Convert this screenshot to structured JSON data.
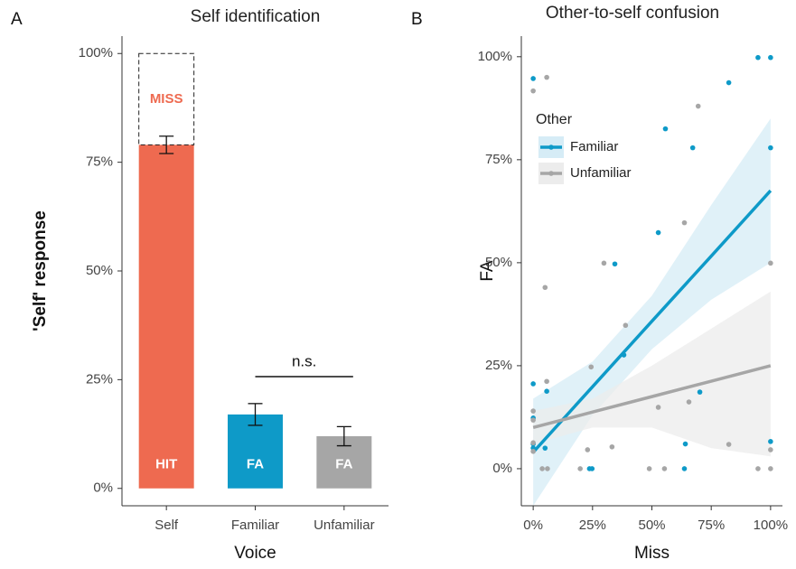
{
  "chart_data": [
    {
      "type": "bar",
      "panel_label": "A",
      "title": "Self identification",
      "ylabel": "'Self' response",
      "xlabel": "Voice",
      "categories": [
        "Self",
        "Familiar",
        "Unfamiliar"
      ],
      "values": [
        79,
        17,
        12
      ],
      "errors": [
        2,
        2.5,
        2.2
      ],
      "colors": [
        "#ee6a50",
        "#0e9ac8",
        "#a6a6a6"
      ],
      "bar_labels": [
        "HIT",
        "FA",
        "FA"
      ],
      "miss": {
        "label": "MISS",
        "value": 21
      },
      "significance": "n.s.",
      "ylim": [
        -4,
        104
      ],
      "yticks": [
        {
          "value": 0,
          "label": "0%"
        },
        {
          "value": 25,
          "label": "25%"
        },
        {
          "value": 50,
          "label": "50%"
        },
        {
          "value": 75,
          "label": "75%"
        },
        {
          "value": 100,
          "label": "100%"
        }
      ]
    },
    {
      "type": "scatter",
      "panel_label": "B",
      "title": "Other-to-self confusion",
      "ylabel": "FA",
      "xlabel": "Miss",
      "legend_title": "Other",
      "legend": "top-left",
      "xlim": [
        -5,
        105
      ],
      "ylim": [
        -9,
        105
      ],
      "xticks": [
        {
          "value": 0,
          "label": "0%"
        },
        {
          "value": 25,
          "label": "25%"
        },
        {
          "value": 50,
          "label": "50%"
        },
        {
          "value": 75,
          "label": "75%"
        },
        {
          "value": 100,
          "label": "100%"
        }
      ],
      "yticks": [
        {
          "value": 0,
          "label": "0%"
        },
        {
          "value": 25,
          "label": "25%"
        },
        {
          "value": 50,
          "label": "50%"
        },
        {
          "value": 75,
          "label": "75%"
        },
        {
          "value": 100,
          "label": "100%"
        }
      ],
      "series": [
        {
          "name": "Familiar",
          "color": "#0e9ac8",
          "band_color": "#d6ecf6",
          "x": [
            0,
            0,
            0,
            0,
            0,
            5.7,
            5,
            23.7,
            24.8,
            34.4,
            38.2,
            52.7,
            55.7,
            63.7,
            64.1,
            67.2,
            70.2,
            82.4,
            94.7,
            100,
            100,
            100
          ],
          "values": [
            94.7,
            20.6,
            12.3,
            6,
            5,
            18.8,
            5,
            0,
            0,
            49.7,
            27.6,
            57.3,
            82.5,
            0,
            6,
            77.9,
            18.6,
            93.7,
            99.8,
            99.8,
            77.9,
            6.6
          ],
          "fit": {
            "x": [
              0,
              25,
              50,
              75,
              100
            ],
            "y": [
              4,
              19.9,
              35.8,
              51.6,
              67.5
            ],
            "lower": [
              -9,
              13,
              29,
              41,
              50
            ],
            "upper": [
              17,
              26,
              42,
              64,
              85
            ]
          }
        },
        {
          "name": "Unfamiliar",
          "color": "#a6a6a6",
          "band_color": "#ececec",
          "x": [
            0,
            5.7,
            0,
            0,
            0,
            0,
            5,
            5.7,
            3.8,
            6,
            19.8,
            22.9,
            24.4,
            29.8,
            33.2,
            38.9,
            48.9,
            52.7,
            55.3,
            63.7,
            65.6,
            69.5,
            82.4,
            94.7,
            100,
            100,
            100
          ],
          "values": [
            91.7,
            95,
            14,
            11.8,
            6.3,
            4.2,
            44,
            21.2,
            0,
            0,
            0,
            4.6,
            24.7,
            49.9,
            5.3,
            34.8,
            0,
            14.9,
            0,
            59.7,
            16.2,
            88,
            5.9,
            0,
            49.9,
            4.6,
            0
          ],
          "fit": {
            "x": [
              0,
              25,
              50,
              75,
              100
            ],
            "y": [
              10,
              13.75,
              17.5,
              21.25,
              25
            ],
            "lower": [
              6,
              10,
              10,
              5,
              3
            ],
            "upper": [
              14,
              17,
              25,
              34,
              43
            ]
          }
        }
      ]
    }
  ]
}
